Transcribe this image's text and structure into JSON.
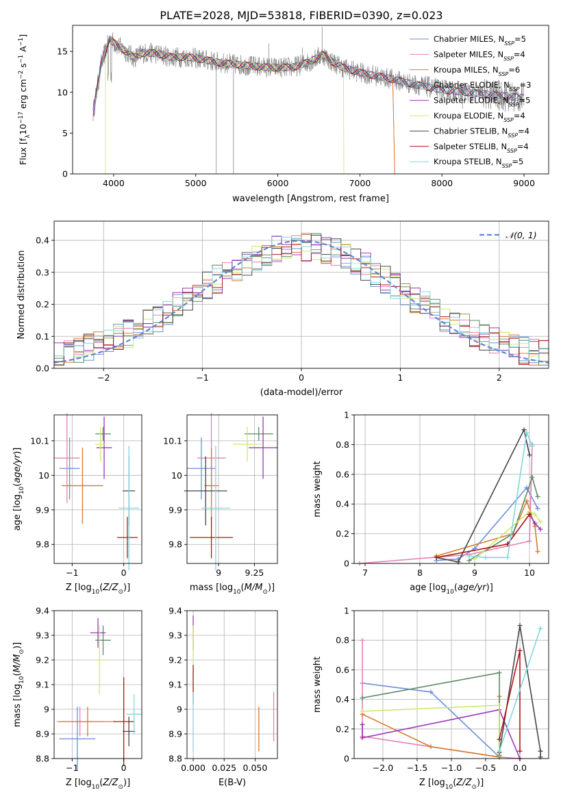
{
  "figure_title": "PLATE=2028, MJD=53818, FIBERID=0390, z=0.023",
  "colors": {
    "Chabrier MILES": "#6a8fd6",
    "Salpeter MILES": "#e77fb5",
    "Kroupa MILES": "#d97828",
    "Chabrier ELODIE": "#5a8866",
    "Salpeter ELODIE": "#9a35b6",
    "Kroupa ELODIE": "#cde86a",
    "Chabrier STELIB": "#454545",
    "Salpeter STELIB": "#b01515",
    "Kroupa STELIB": "#7fd6dc",
    "spectrum": "#888888",
    "normal_curve": "#5b86d6"
  },
  "chart_data": [
    {
      "id": "spectrum",
      "type": "line",
      "title": "PLATE=2028, MJD=53818, FIBERID=0390, z=0.023",
      "xlabel": "wavelength [Angstrom, rest frame]",
      "ylabel_parts": [
        "Flux [f",
        "λ",
        "10",
        "−17",
        " erg cm",
        "−2",
        " s",
        "−1",
        " A",
        "−1",
        "]"
      ],
      "xlim": [
        3500,
        9300
      ],
      "ylim": [
        0,
        18.2
      ],
      "xticks": [
        4000,
        5000,
        6000,
        7000,
        8000,
        9000
      ],
      "yticks": [
        0,
        5,
        10,
        15
      ],
      "grid": false,
      "legend_position": "top-right",
      "legend": [
        {
          "name": "Chabrier MILES",
          "n": "5"
        },
        {
          "name": "Salpeter MILES",
          "n": "4"
        },
        {
          "name": "Kroupa MILES",
          "n": "6"
        },
        {
          "name": "Chabrier ELODIE",
          "n": "3"
        },
        {
          "name": "Salpeter ELODIE",
          "n": "5"
        },
        {
          "name": "Kroupa ELODIE",
          "n": "4"
        },
        {
          "name": "Chabrier STELIB",
          "n": "4"
        },
        {
          "name": "Salpeter STELIB",
          "n": "4"
        },
        {
          "name": "Kroupa STELIB",
          "n": "5"
        }
      ],
      "data_range": [
        3750,
        9000
      ],
      "continuum": [
        [
          3750,
          7.5
        ],
        [
          3850,
          13.5
        ],
        [
          3950,
          16.5
        ],
        [
          4050,
          15.7
        ],
        [
          4150,
          15.0
        ],
        [
          4250,
          14.2
        ],
        [
          4350,
          14.8
        ],
        [
          4500,
          14.8
        ],
        [
          4700,
          14.3
        ],
        [
          4900,
          14.3
        ],
        [
          5100,
          14.0
        ],
        [
          5300,
          13.6
        ],
        [
          5600,
          13.3
        ],
        [
          5800,
          13.1
        ],
        [
          6000,
          13.0
        ],
        [
          6200,
          13.1
        ],
        [
          6400,
          13.8
        ],
        [
          6550,
          14.6
        ],
        [
          6650,
          13.8
        ],
        [
          6800,
          13.0
        ],
        [
          7000,
          12.4
        ],
        [
          7200,
          12.0
        ],
        [
          7400,
          11.6
        ],
        [
          7600,
          11.1
        ],
        [
          7800,
          10.7
        ],
        [
          8000,
          10.3
        ],
        [
          8300,
          10.0
        ],
        [
          8600,
          9.7
        ],
        [
          8800,
          9.5
        ],
        [
          9000,
          9.3
        ]
      ],
      "model_cutoffs": [
        {
          "model": "Kroupa ELODIE",
          "from": 3900,
          "to": 6800,
          "blue_end": 0.0
        },
        {
          "model": "Salpeter MILES",
          "from": 3750,
          "to": 7420
        },
        {
          "model": "Kroupa MILES",
          "from": 3750,
          "to": 7420
        },
        {
          "model": "Salpeter STELIB",
          "from": 3750,
          "to": 8900
        },
        {
          "model": "Kroupa STELIB",
          "from": 3750,
          "to": 8900
        }
      ]
    },
    {
      "id": "residuals",
      "type": "line",
      "xlabel": "(data-model)/error",
      "ylabel": "Normed distribution",
      "xlim": [
        -2.5,
        2.5
      ],
      "ylim": [
        0,
        0.46
      ],
      "xticks": [
        -2,
        -1,
        0,
        1,
        2
      ],
      "yticks": [
        0.0,
        0.1,
        0.2,
        0.3,
        0.4
      ],
      "grid": true,
      "legend_position": "top-right",
      "legend": [
        {
          "name": "𝒩(0, 1)"
        }
      ],
      "bin_width": 0.1,
      "normal": {
        "mean": 0,
        "sigma": 1
      }
    },
    {
      "id": "age_vs_z",
      "type": "scatter",
      "xlabel": "Z [log10(Z/Z⊙)]",
      "ylabel": "age [log10(age/yr)]",
      "xlim": [
        -1.35,
        0.35
      ],
      "ylim": [
        9.745,
        10.175
      ],
      "xticks": [
        -1,
        0
      ],
      "yticks": [
        9.8,
        9.9,
        10.0,
        10.1
      ],
      "grid": true,
      "points": [
        {
          "model": "Chabrier MILES",
          "x": -1.05,
          "y": 10.02,
          "xerr": 0.2,
          "yerr": 0.09
        },
        {
          "model": "Salpeter MILES",
          "x": -1.1,
          "y": 10.05,
          "xerr": 0.25,
          "yerr": 0.13
        },
        {
          "model": "Kroupa MILES",
          "x": -0.8,
          "y": 9.97,
          "xerr": 0.4,
          "yerr": 0.11
        },
        {
          "model": "Chabrier ELODIE",
          "x": -0.4,
          "y": 10.12,
          "xerr": 0.15,
          "yerr": 0.02
        },
        {
          "model": "Salpeter ELODIE",
          "x": -0.38,
          "y": 10.08,
          "xerr": 0.15,
          "yerr": 0.09
        },
        {
          "model": "Kroupa ELODIE",
          "x": -0.45,
          "y": 10.09,
          "xerr": 0.1,
          "yerr": 0.05
        },
        {
          "model": "Chabrier STELIB",
          "x": 0.1,
          "y": 9.955,
          "xerr": 0.12,
          "yerr": 0.1
        },
        {
          "model": "Salpeter STELIB",
          "x": 0.07,
          "y": 9.82,
          "xerr": 0.2,
          "yerr": 0.06
        },
        {
          "model": "Kroupa STELIB",
          "x": 0.1,
          "y": 9.905,
          "xerr": 0.2,
          "yerr": 0.18
        }
      ]
    },
    {
      "id": "age_vs_mass",
      "type": "scatter",
      "xlabel": "mass [log10(M/M⊙)]",
      "ylabel": "",
      "xlim": [
        8.78,
        9.41
      ],
      "ylim": [
        9.745,
        10.175
      ],
      "xticks": [
        9.0,
        9.25
      ],
      "yticks": [
        9.8,
        9.9,
        10.0,
        10.1
      ],
      "grid": true,
      "points": [
        {
          "model": "Chabrier MILES",
          "x": 8.88,
          "y": 10.02,
          "xerr": 0.1,
          "yerr": 0.09
        },
        {
          "model": "Salpeter MILES",
          "x": 8.95,
          "y": 10.05,
          "xerr": 0.1,
          "yerr": 0.13
        },
        {
          "model": "Kroupa MILES",
          "x": 8.95,
          "y": 9.97,
          "xerr": 0.05,
          "yerr": 0.11
        },
        {
          "model": "Chabrier ELODIE",
          "x": 9.28,
          "y": 10.12,
          "xerr": 0.1,
          "yerr": 0.02
        },
        {
          "model": "Salpeter ELODIE",
          "x": 9.31,
          "y": 10.08,
          "xerr": 0.1,
          "yerr": 0.09
        },
        {
          "model": "Kroupa ELODIE",
          "x": 9.2,
          "y": 10.09,
          "xerr": 0.1,
          "yerr": 0.05
        },
        {
          "model": "Chabrier STELIB",
          "x": 8.91,
          "y": 9.955,
          "xerr": 0.15,
          "yerr": 0.1
        },
        {
          "model": "Salpeter STELIB",
          "x": 8.95,
          "y": 9.82,
          "xerr": 0.15,
          "yerr": 0.06
        },
        {
          "model": "Kroupa STELIB",
          "x": 8.98,
          "y": 9.905,
          "xerr": 0.1,
          "yerr": 0.18
        }
      ]
    },
    {
      "id": "weight_vs_age",
      "type": "line",
      "xlabel": "age [log10(age/yr)]",
      "ylabel": "mass weight",
      "xlim": [
        6.8,
        10.35
      ],
      "ylim": [
        0,
        1.0
      ],
      "xticks": [
        7,
        8,
        9,
        10
      ],
      "yticks": [
        0.0,
        0.2,
        0.4,
        0.6,
        0.8,
        1.0
      ],
      "grid": true,
      "series": [
        {
          "model": "Chabrier MILES",
          "points": [
            [
              8.3,
              0.02
            ],
            [
              8.7,
              0.03
            ],
            [
              9.0,
              0.1
            ],
            [
              9.95,
              0.51
            ],
            [
              10.15,
              0.37
            ]
          ]
        },
        {
          "model": "Salpeter MILES",
          "points": [
            [
              6.9,
              0.0
            ],
            [
              8.9,
              0.06
            ],
            [
              10.0,
              0.15
            ],
            [
              10.05,
              0.8
            ]
          ]
        },
        {
          "model": "Kroupa MILES",
          "points": [
            [
              8.3,
              0.05
            ],
            [
              9.7,
              0.2
            ],
            [
              9.95,
              0.42
            ],
            [
              10.1,
              0.25
            ],
            [
              10.15,
              0.08
            ]
          ]
        },
        {
          "model": "Chabrier ELODIE",
          "points": [
            [
              8.9,
              0.02
            ],
            [
              9.7,
              0.2
            ],
            [
              10.05,
              0.58
            ],
            [
              10.15,
              0.45
            ]
          ]
        },
        {
          "model": "Salpeter ELODIE",
          "points": [
            [
              9.6,
              0.13
            ],
            [
              10.0,
              0.33
            ],
            [
              10.1,
              0.27
            ],
            [
              10.2,
              0.23
            ]
          ]
        },
        {
          "model": "Kroupa ELODIE",
          "points": [
            [
              9.0,
              0.03
            ],
            [
              10.0,
              0.35
            ],
            [
              10.1,
              0.33
            ],
            [
              10.2,
              0.28
            ]
          ]
        },
        {
          "model": "Chabrier STELIB",
          "points": [
            [
              8.3,
              0.04
            ],
            [
              8.7,
              0.01
            ],
            [
              9.9,
              0.9
            ],
            [
              10.0,
              0.73
            ]
          ]
        },
        {
          "model": "Salpeter STELIB",
          "points": [
            [
              8.3,
              0.04
            ],
            [
              9.6,
              0.13
            ],
            [
              10.0,
              0.33
            ]
          ]
        },
        {
          "model": "Kroupa STELIB",
          "points": [
            [
              8.9,
              0.05
            ],
            [
              9.2,
              0.04
            ],
            [
              9.6,
              0.04
            ],
            [
              9.95,
              0.88
            ],
            [
              10.05,
              0.79
            ]
          ]
        }
      ]
    },
    {
      "id": "mass_vs_z",
      "type": "scatter",
      "xlabel": "Z [log10(Z/Z⊙)]",
      "ylabel": "mass [log10(M/M⊙)]",
      "xlim": [
        -1.35,
        0.35
      ],
      "ylim": [
        8.8,
        9.4
      ],
      "xticks": [
        -1,
        0
      ],
      "yticks": [
        8.8,
        8.9,
        9.0,
        9.1,
        9.2,
        9.3,
        9.4
      ],
      "grid": true,
      "points": [
        {
          "model": "Chabrier MILES",
          "x": -0.9,
          "y": 8.88,
          "xerr": 0.35,
          "yerr": 0.13
        },
        {
          "model": "Salpeter MILES",
          "x": -0.85,
          "y": 8.95,
          "xerr": 0.45,
          "yerr": 0.06
        },
        {
          "model": "Kroupa MILES",
          "x": -0.7,
          "y": 8.95,
          "xerr": 0.55,
          "yerr": 0.06
        },
        {
          "model": "Chabrier ELODIE",
          "x": -0.4,
          "y": 9.28,
          "xerr": 0.15,
          "yerr": 0.06
        },
        {
          "model": "Salpeter ELODIE",
          "x": -0.5,
          "y": 9.31,
          "xerr": 0.15,
          "yerr": 0.06
        },
        {
          "model": "Kroupa ELODIE",
          "x": -0.47,
          "y": 9.2,
          "xerr": 0.1,
          "yerr": 0.14
        },
        {
          "model": "Chabrier STELIB",
          "x": 0.1,
          "y": 8.91,
          "xerr": 0.12,
          "yerr": 0.06
        },
        {
          "model": "Salpeter STELIB",
          "x": 0.0,
          "y": 8.95,
          "xerr": 0.2,
          "yerr": 0.18
        },
        {
          "model": "Kroupa STELIB",
          "x": 0.2,
          "y": 8.98,
          "xerr": 0.15,
          "yerr": 0.08
        }
      ]
    },
    {
      "id": "mass_vs_ebv",
      "type": "scatter",
      "xlabel": "E(B-V)",
      "ylabel": "",
      "xlim": [
        -0.005,
        0.068
      ],
      "ylim": [
        8.8,
        9.4
      ],
      "xticks": [
        0.0,
        0.025,
        0.05
      ],
      "xticklabels": [
        "0.000",
        "0.025",
        "0.050"
      ],
      "yticks": [
        8.8,
        8.9,
        9.0,
        9.1,
        9.2,
        9.3,
        9.4
      ],
      "grid": true,
      "points": [
        {
          "model": "Salpeter ELODIE",
          "x": 0.0,
          "y": 9.31,
          "xerr": 0.0,
          "yerr": 0.07
        },
        {
          "model": "Kroupa ELODIE",
          "x": 0.0,
          "y": 9.2,
          "xerr": 0.0,
          "yerr": 0.14
        },
        {
          "model": "Salpeter STELIB",
          "x": 0.0,
          "y": 9.1,
          "xerr": 0.0,
          "yerr": 0.08
        },
        {
          "model": "Kroupa STELIB",
          "x": 0.0,
          "y": 8.95,
          "xerr": 0.0,
          "yerr": 0.12
        },
        {
          "model": "Kroupa MILES",
          "x": 0.053,
          "y": 8.92,
          "xerr": 0.0,
          "yerr": 0.09
        },
        {
          "model": "Salpeter MILES",
          "x": 0.065,
          "y": 8.97,
          "xerr": 0.0,
          "yerr": 0.1
        }
      ]
    },
    {
      "id": "weight_vs_z",
      "type": "line",
      "xlabel": "Z [log10(Z/Z⊙)]",
      "ylabel": "mass weight",
      "xlim": [
        -2.42,
        0.42
      ],
      "ylim": [
        0,
        1.0
      ],
      "xticks": [
        -2.0,
        -1.5,
        -1.0,
        -0.5,
        0.0
      ],
      "xticklabels": [
        "−2.0",
        "−1.5",
        "−1.0",
        "−0.5",
        "0.0"
      ],
      "yticks": [
        0.0,
        0.2,
        0.4,
        0.6,
        0.8,
        1.0
      ],
      "grid": true,
      "series": [
        {
          "model": "Chabrier MILES",
          "points": [
            [
              -2.3,
              0.51
            ],
            [
              -1.3,
              0.45
            ],
            [
              -0.3,
              0.01
            ]
          ]
        },
        {
          "model": "Salpeter MILES",
          "points": [
            [
              -2.3,
              0.8
            ],
            [
              -2.3,
              0.15
            ],
            [
              -0.3,
              0.01
            ],
            [
              0.0,
              0.0
            ]
          ]
        },
        {
          "model": "Kroupa MILES",
          "points": [
            [
              -2.3,
              0.3
            ],
            [
              -1.3,
              0.08
            ],
            [
              -0.3,
              0.01
            ],
            [
              -0.3,
              0.42
            ]
          ]
        },
        {
          "model": "Chabrier ELODIE",
          "points": [
            [
              -2.3,
              0.41
            ],
            [
              -0.3,
              0.58
            ],
            [
              -0.3,
              0.02
            ]
          ]
        },
        {
          "model": "Salpeter ELODIE",
          "points": [
            [
              -2.3,
              0.23
            ],
            [
              -2.3,
              0.14
            ],
            [
              -0.3,
              0.33
            ],
            [
              0.0,
              0.0
            ]
          ]
        },
        {
          "model": "Kroupa ELODIE",
          "points": [
            [
              -2.3,
              0.32
            ],
            [
              -0.3,
              0.36
            ],
            [
              -0.3,
              0.03
            ]
          ]
        },
        {
          "model": "Chabrier STELIB",
          "points": [
            [
              -0.3,
              0.04
            ],
            [
              0.0,
              0.9
            ],
            [
              0.3,
              0.05
            ],
            [
              0.3,
              0.01
            ]
          ]
        },
        {
          "model": "Salpeter STELIB",
          "points": [
            [
              -0.3,
              0.13
            ],
            [
              0.0,
              0.73
            ],
            [
              0.0,
              0.05
            ]
          ]
        },
        {
          "model": "Kroupa STELIB",
          "points": [
            [
              -0.3,
              0.05
            ],
            [
              0.3,
              0.88
            ]
          ]
        }
      ]
    }
  ]
}
